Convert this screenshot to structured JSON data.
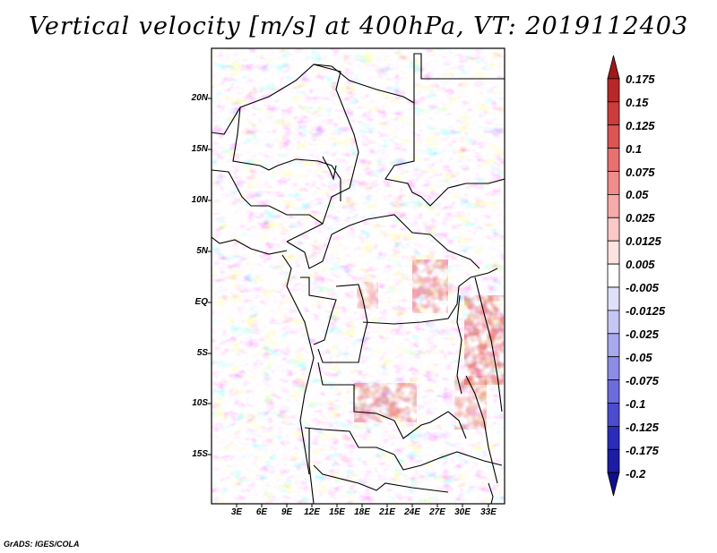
{
  "title": "Vertical velocity [m/s] at 400hPa, VT: 2019112403",
  "credit": "GrADS: IGES/COLA",
  "lat_labels": [
    "20N",
    "15N",
    "10N",
    "5N",
    "EQ",
    "5S",
    "10S",
    "15S"
  ],
  "lon_labels": [
    "3E",
    "6E",
    "9E",
    "12E",
    "15E",
    "18E",
    "21E",
    "24E",
    "27E",
    "30E",
    "33E"
  ],
  "colorbar": {
    "labels": [
      "0.175",
      "0.15",
      "0.125",
      "0.1",
      "0.075",
      "0.05",
      "0.025",
      "0.0125",
      "0.005",
      "-0.005",
      "-0.0125",
      "-0.025",
      "-0.05",
      "-0.075",
      "-0.1",
      "-0.125",
      "-0.175",
      "-0.2"
    ],
    "colors": [
      "#a01818",
      "#b82828",
      "#cc3c3c",
      "#dc5454",
      "#e87070",
      "#f08c8c",
      "#f6aaaa",
      "#fac8c8",
      "#fde2e2",
      "#ffffff",
      "#e0e0fa",
      "#c6c6f4",
      "#a8a8ee",
      "#8c8ce6",
      "#6c6cdc",
      "#4c4cd0",
      "#2c2cbc",
      "#1c1ca4",
      "#10108a"
    ]
  }
}
